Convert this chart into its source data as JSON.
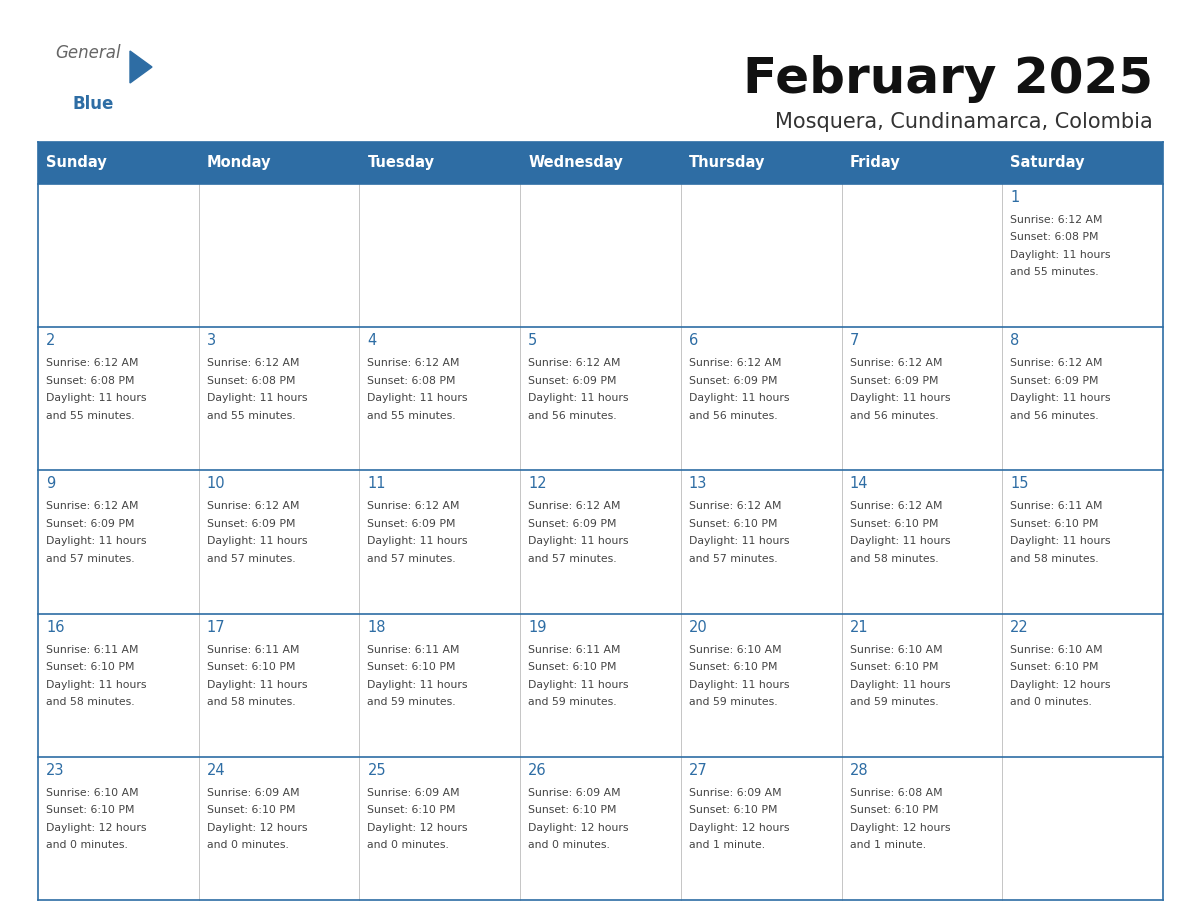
{
  "title": "February 2025",
  "subtitle": "Mosquera, Cundinamarca, Colombia",
  "header_bg": "#2E6DA4",
  "header_text_color": "#FFFFFF",
  "cell_bg": "#FFFFFF",
  "day_number_color": "#2E6DA4",
  "cell_text_color": "#444444",
  "border_color": "#2E6DA4",
  "light_border_color": "#AAAAAA",
  "days_of_week": [
    "Sunday",
    "Monday",
    "Tuesday",
    "Wednesday",
    "Thursday",
    "Friday",
    "Saturday"
  ],
  "calendar": [
    [
      {
        "day": "",
        "info": ""
      },
      {
        "day": "",
        "info": ""
      },
      {
        "day": "",
        "info": ""
      },
      {
        "day": "",
        "info": ""
      },
      {
        "day": "",
        "info": ""
      },
      {
        "day": "",
        "info": ""
      },
      {
        "day": "1",
        "info": "Sunrise: 6:12 AM\nSunset: 6:08 PM\nDaylight: 11 hours\nand 55 minutes."
      }
    ],
    [
      {
        "day": "2",
        "info": "Sunrise: 6:12 AM\nSunset: 6:08 PM\nDaylight: 11 hours\nand 55 minutes."
      },
      {
        "day": "3",
        "info": "Sunrise: 6:12 AM\nSunset: 6:08 PM\nDaylight: 11 hours\nand 55 minutes."
      },
      {
        "day": "4",
        "info": "Sunrise: 6:12 AM\nSunset: 6:08 PM\nDaylight: 11 hours\nand 55 minutes."
      },
      {
        "day": "5",
        "info": "Sunrise: 6:12 AM\nSunset: 6:09 PM\nDaylight: 11 hours\nand 56 minutes."
      },
      {
        "day": "6",
        "info": "Sunrise: 6:12 AM\nSunset: 6:09 PM\nDaylight: 11 hours\nand 56 minutes."
      },
      {
        "day": "7",
        "info": "Sunrise: 6:12 AM\nSunset: 6:09 PM\nDaylight: 11 hours\nand 56 minutes."
      },
      {
        "day": "8",
        "info": "Sunrise: 6:12 AM\nSunset: 6:09 PM\nDaylight: 11 hours\nand 56 minutes."
      }
    ],
    [
      {
        "day": "9",
        "info": "Sunrise: 6:12 AM\nSunset: 6:09 PM\nDaylight: 11 hours\nand 57 minutes."
      },
      {
        "day": "10",
        "info": "Sunrise: 6:12 AM\nSunset: 6:09 PM\nDaylight: 11 hours\nand 57 minutes."
      },
      {
        "day": "11",
        "info": "Sunrise: 6:12 AM\nSunset: 6:09 PM\nDaylight: 11 hours\nand 57 minutes."
      },
      {
        "day": "12",
        "info": "Sunrise: 6:12 AM\nSunset: 6:09 PM\nDaylight: 11 hours\nand 57 minutes."
      },
      {
        "day": "13",
        "info": "Sunrise: 6:12 AM\nSunset: 6:10 PM\nDaylight: 11 hours\nand 57 minutes."
      },
      {
        "day": "14",
        "info": "Sunrise: 6:12 AM\nSunset: 6:10 PM\nDaylight: 11 hours\nand 58 minutes."
      },
      {
        "day": "15",
        "info": "Sunrise: 6:11 AM\nSunset: 6:10 PM\nDaylight: 11 hours\nand 58 minutes."
      }
    ],
    [
      {
        "day": "16",
        "info": "Sunrise: 6:11 AM\nSunset: 6:10 PM\nDaylight: 11 hours\nand 58 minutes."
      },
      {
        "day": "17",
        "info": "Sunrise: 6:11 AM\nSunset: 6:10 PM\nDaylight: 11 hours\nand 58 minutes."
      },
      {
        "day": "18",
        "info": "Sunrise: 6:11 AM\nSunset: 6:10 PM\nDaylight: 11 hours\nand 59 minutes."
      },
      {
        "day": "19",
        "info": "Sunrise: 6:11 AM\nSunset: 6:10 PM\nDaylight: 11 hours\nand 59 minutes."
      },
      {
        "day": "20",
        "info": "Sunrise: 6:10 AM\nSunset: 6:10 PM\nDaylight: 11 hours\nand 59 minutes."
      },
      {
        "day": "21",
        "info": "Sunrise: 6:10 AM\nSunset: 6:10 PM\nDaylight: 11 hours\nand 59 minutes."
      },
      {
        "day": "22",
        "info": "Sunrise: 6:10 AM\nSunset: 6:10 PM\nDaylight: 12 hours\nand 0 minutes."
      }
    ],
    [
      {
        "day": "23",
        "info": "Sunrise: 6:10 AM\nSunset: 6:10 PM\nDaylight: 12 hours\nand 0 minutes."
      },
      {
        "day": "24",
        "info": "Sunrise: 6:09 AM\nSunset: 6:10 PM\nDaylight: 12 hours\nand 0 minutes."
      },
      {
        "day": "25",
        "info": "Sunrise: 6:09 AM\nSunset: 6:10 PM\nDaylight: 12 hours\nand 0 minutes."
      },
      {
        "day": "26",
        "info": "Sunrise: 6:09 AM\nSunset: 6:10 PM\nDaylight: 12 hours\nand 0 minutes."
      },
      {
        "day": "27",
        "info": "Sunrise: 6:09 AM\nSunset: 6:10 PM\nDaylight: 12 hours\nand 1 minute."
      },
      {
        "day": "28",
        "info": "Sunrise: 6:08 AM\nSunset: 6:10 PM\nDaylight: 12 hours\nand 1 minute."
      },
      {
        "day": "",
        "info": ""
      }
    ]
  ],
  "fig_width": 11.88,
  "fig_height": 9.18,
  "dpi": 100
}
